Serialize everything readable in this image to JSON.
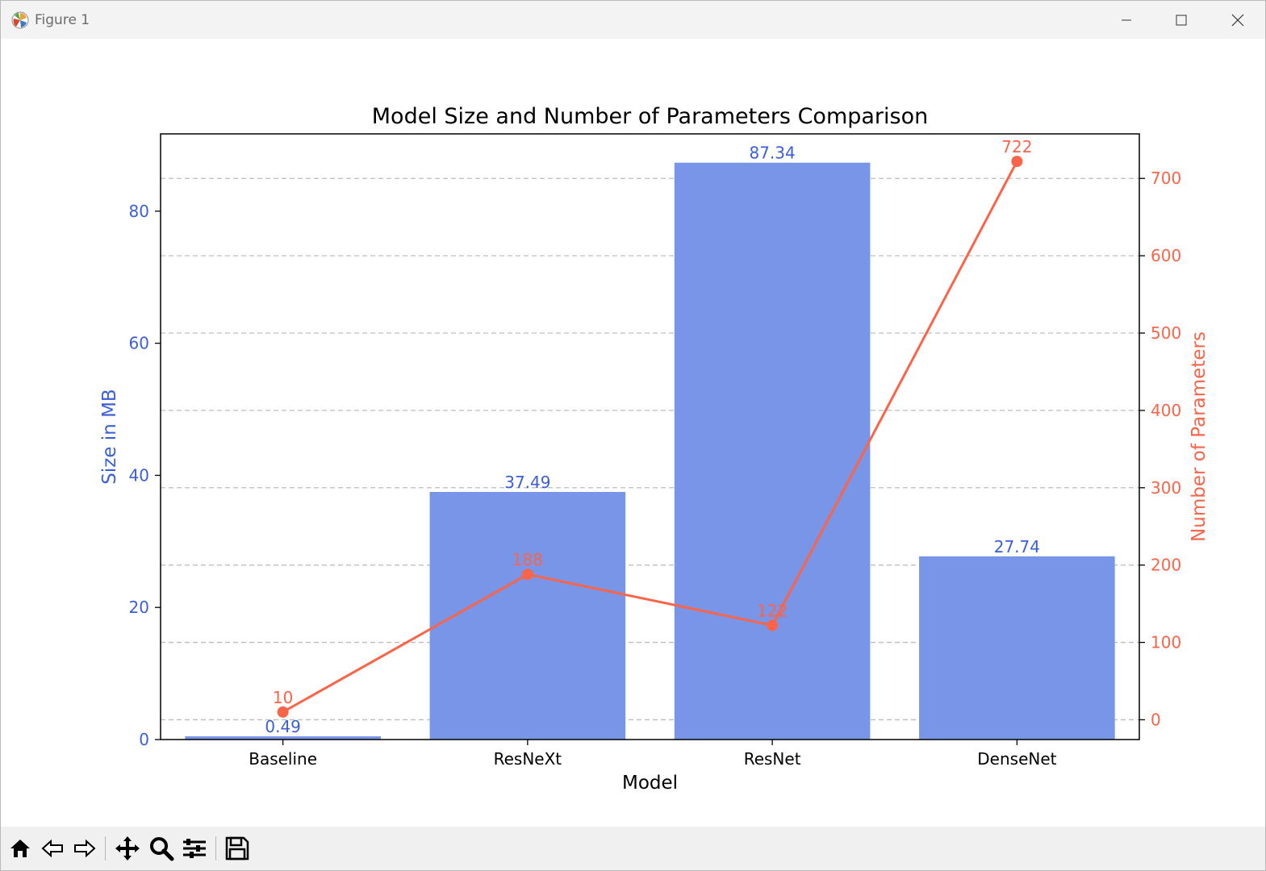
{
  "window": {
    "title": "Figure 1"
  },
  "toolbar": {
    "buttons": [
      {
        "name": "home-icon",
        "label": "Home"
      },
      {
        "name": "back-icon",
        "label": "Back"
      },
      {
        "name": "forward-icon",
        "label": "Forward"
      },
      {
        "name": "pan-icon",
        "label": "Pan"
      },
      {
        "name": "zoom-icon",
        "label": "Zoom"
      },
      {
        "name": "configure-subplots-icon",
        "label": "Subplots"
      },
      {
        "name": "save-icon",
        "label": "Save"
      }
    ]
  },
  "colors": {
    "bar": "#7895e8",
    "left_axis": "#3a5fd9",
    "line": "#fa6449",
    "grid": "#bdbdbd"
  },
  "chart_data": {
    "type": "bar",
    "title": "Model Size and Number of Parameters Comparison",
    "xlabel": "Model",
    "ylabel": "Size in MB",
    "y2label": "Number of Parameters",
    "categories": [
      "Baseline",
      "ResNeXt",
      "ResNet",
      "DenseNet"
    ],
    "series": [
      {
        "type": "bar",
        "axis": "left",
        "values": [
          0.49,
          37.49,
          87.34,
          27.74
        ],
        "labels": [
          "0.49",
          "37.49",
          "87.34",
          "27.74"
        ]
      },
      {
        "type": "line",
        "axis": "right",
        "values": [
          10,
          188,
          122,
          722
        ],
        "labels": [
          "10",
          "188",
          "122",
          "722"
        ]
      }
    ],
    "ylim": [
      0,
      91.7
    ],
    "y2lim": [
      -25.6,
      757.6
    ],
    "yticks": [
      0,
      20,
      40,
      60,
      80
    ],
    "y2ticks": [
      0,
      100,
      200,
      300,
      400,
      500,
      600,
      700
    ],
    "grid": "horizontal dashed (right axis)"
  }
}
